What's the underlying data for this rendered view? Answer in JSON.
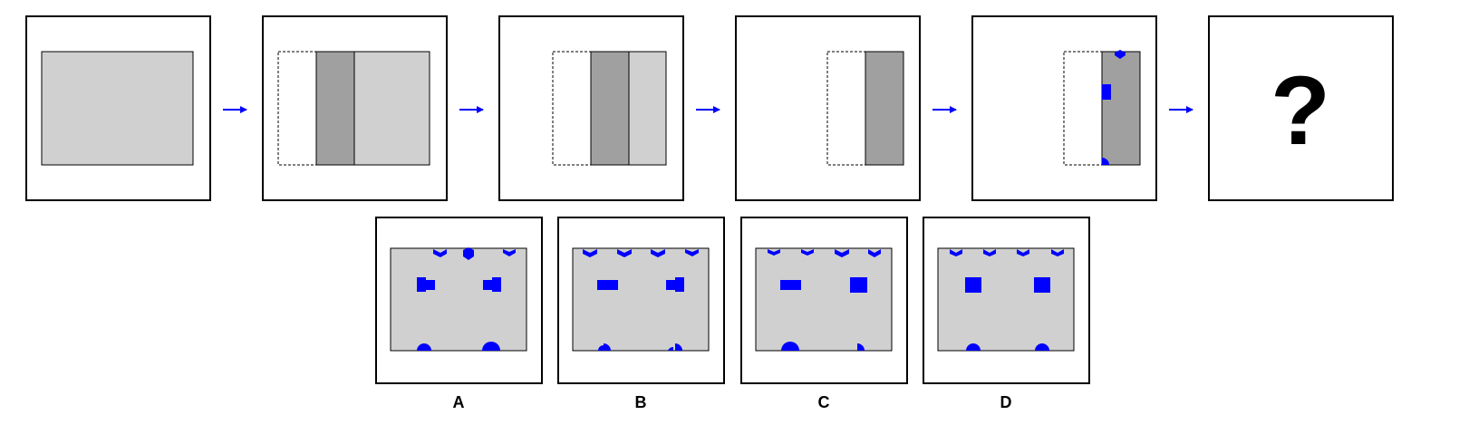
{
  "puzzle": {
    "question_mark": "?",
    "colors": {
      "paper": "#d0d0d0",
      "folded_layer": "#a0a0a0",
      "hole": "#0000ff",
      "arrow": "#0000ff",
      "frame": "#000000"
    },
    "steps": [
      {
        "name": "unfolded-paper"
      },
      {
        "name": "first-fold"
      },
      {
        "name": "second-fold"
      },
      {
        "name": "third-fold"
      },
      {
        "name": "punched"
      }
    ]
  },
  "options": [
    {
      "letter": "A"
    },
    {
      "letter": "B"
    },
    {
      "letter": "C"
    },
    {
      "letter": "D"
    }
  ]
}
